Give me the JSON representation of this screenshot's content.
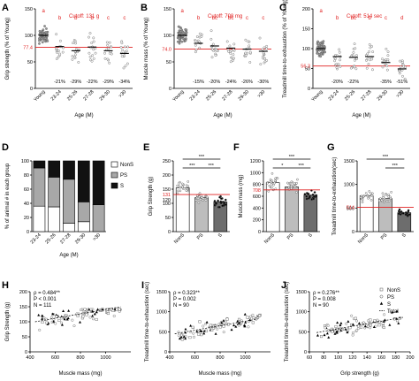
{
  "chart_data": [
    {
      "panel": "A",
      "type": "scatter",
      "ylabel": "Grip strength (% of Young)",
      "xlabel": "Age (M)",
      "categories": [
        "Young",
        "23-24",
        "25-26",
        "27-28",
        "29-30",
        ">30"
      ],
      "ylim": [
        0,
        150
      ],
      "yticks": [
        "0",
        "50",
        "100",
        "150"
      ],
      "cutoff_label": "Cutoff: 131 g",
      "cutoff_value": 77.4,
      "cutoff_tick": "77.4",
      "letters": [
        "a",
        "b",
        "b",
        "b",
        "c",
        "c"
      ],
      "pct": [
        "",
        "-21%",
        "-29%",
        "-22%",
        "-29%",
        "-34%"
      ],
      "means": [
        100,
        79,
        71,
        78,
        71,
        66
      ]
    },
    {
      "panel": "B",
      "type": "scatter",
      "ylabel": "Muscle mass (% of Young)",
      "xlabel": "Age (M)",
      "categories": [
        "Young",
        "23-24",
        "25-26",
        "27-28",
        "29-30",
        ">30"
      ],
      "ylim": [
        0,
        150
      ],
      "yticks": [
        "0",
        "50",
        "100",
        "150"
      ],
      "cutoff_label": "Cutoff: 708 mg",
      "cutoff_value": 74.0,
      "cutoff_tick": "74.0",
      "letters": [
        "a",
        "b",
        "bc",
        "bc",
        "c",
        "c"
      ],
      "pct": [
        "",
        "-15%",
        "-20%",
        "-24%",
        "-26%",
        "-30%"
      ],
      "means": [
        100,
        85,
        80,
        76,
        74,
        70
      ]
    },
    {
      "panel": "C",
      "type": "scatter",
      "ylabel": "Treadmill time-to-exhaustion (% of Young)",
      "xlabel": "Age (M)",
      "categories": [
        "Young",
        "23-24",
        "25-26",
        "27-28",
        "29-30",
        ">30"
      ],
      "ylim": [
        0,
        200
      ],
      "yticks": [
        "0",
        "50",
        "100",
        "150",
        "200"
      ],
      "cutoff_label": "Cutoff: 514 sec",
      "cutoff_value": 56.3,
      "cutoff_tick": "56.3",
      "letters": [
        "a",
        "b",
        "bc",
        "b",
        "c",
        "d"
      ],
      "pct": [
        "",
        "-20%",
        "-22%",
        "",
        "-35%",
        "-51%"
      ],
      "means": [
        100,
        80,
        78,
        80,
        65,
        49
      ]
    },
    {
      "panel": "D",
      "type": "bar",
      "ylabel": "% of animal # in each group",
      "xlabel": "Age (M)",
      "categories": [
        "23-24",
        "25-26",
        "27-28",
        "29-30",
        ">30"
      ],
      "ylim": [
        0,
        100
      ],
      "yticks": [
        "0",
        "20",
        "40",
        "60",
        "80",
        "100"
      ],
      "series": [
        {
          "name": "NonS",
          "values": [
            36,
            35,
            12,
            14,
            0
          ],
          "color": "#ffffff"
        },
        {
          "name": "PS",
          "values": [
            54,
            42,
            62,
            28,
            38
          ],
          "color": "#a8a8a8"
        },
        {
          "name": "S",
          "values": [
            10,
            23,
            26,
            58,
            62
          ],
          "color": "#111111"
        }
      ]
    },
    {
      "panel": "E",
      "type": "bar",
      "ylabel": "Grip Strength (g)",
      "categories": [
        "NonS",
        "PS",
        "S"
      ],
      "values": [
        155,
        120,
        105
      ],
      "ylim": [
        0,
        250
      ],
      "yticks": [
        "0",
        "50",
        "100",
        "150",
        "200",
        "250"
      ],
      "cutoff_value": 131,
      "cutoff_tick": "131",
      "extra_tick": "120",
      "sig": [
        "***",
        "***",
        "***"
      ]
    },
    {
      "panel": "F",
      "type": "bar",
      "ylabel": "Muscle mass (mg)",
      "categories": [
        "NonS",
        "PS",
        "S"
      ],
      "values": [
        830,
        760,
        620
      ],
      "ylim": [
        0,
        1200
      ],
      "yticks": [
        "0",
        "200",
        "400",
        "600",
        "800",
        "1000",
        "1200"
      ],
      "cutoff_value": 708,
      "cutoff_tick": "708",
      "sig": [
        "***",
        "*",
        "***"
      ]
    },
    {
      "panel": "G",
      "type": "bar",
      "ylabel": "Treadmill time-to-exhaustion(sec)",
      "categories": [
        "NonS",
        "PS",
        "S"
      ],
      "values": [
        760,
        700,
        400
      ],
      "ylim": [
        0,
        1500
      ],
      "yticks": [
        "0",
        "500",
        "1000",
        "1500"
      ],
      "cutoff_value": 514,
      "cutoff_tick": "514",
      "sig": [
        "***",
        "***"
      ]
    },
    {
      "panel": "H",
      "type": "scatter",
      "ylabel": "Grip Strength (g)",
      "xlabel": "Muscle mass (mg)",
      "xlim": [
        400,
        1200
      ],
      "xticks": [
        "400",
        "600",
        "800",
        "1000"
      ],
      "ylim": [
        0,
        200
      ],
      "yticks": [
        "0",
        "50",
        "100",
        "150",
        "200"
      ],
      "stats": [
        "ρ = 0.484**",
        "P < 0.001",
        "N = 111"
      ],
      "fit": [
        [
          440,
          100
        ],
        [
          1120,
          150
        ]
      ]
    },
    {
      "panel": "I",
      "type": "scatter",
      "ylabel": "Treadmill time-to-exhaustion (sec)",
      "xlabel": "Muscle mass (mg)",
      "xlim": [
        400,
        1200
      ],
      "xticks": [
        "400",
        "600",
        "800",
        "1000"
      ],
      "ylim": [
        0,
        1500
      ],
      "yticks": [
        "0",
        "500",
        "1000",
        "1500"
      ],
      "stats": [
        "ρ = 0.323**",
        "P = 0.002",
        "N = 90"
      ],
      "fit": [
        [
          440,
          450
        ],
        [
          1100,
          820
        ]
      ]
    },
    {
      "panel": "J",
      "type": "scatter",
      "ylabel": "Treadmill time-to-exhaustion (sec)",
      "xlabel": "Grip strength (g)",
      "xlim": [
        60,
        200
      ],
      "xticks": [
        "60",
        "80",
        "100",
        "120",
        "140",
        "160",
        "180",
        "200"
      ],
      "ylim": [
        0,
        1500
      ],
      "yticks": [
        "0",
        "500",
        "1000",
        "1500"
      ],
      "stats": [
        "ρ = 0.276**",
        "P = 0.008",
        "N = 90"
      ],
      "fit": [
        [
          70,
          480
        ],
        [
          190,
          860
        ]
      ],
      "legend": [
        "NonS",
        "PS",
        "S",
        "Total"
      ]
    }
  ]
}
